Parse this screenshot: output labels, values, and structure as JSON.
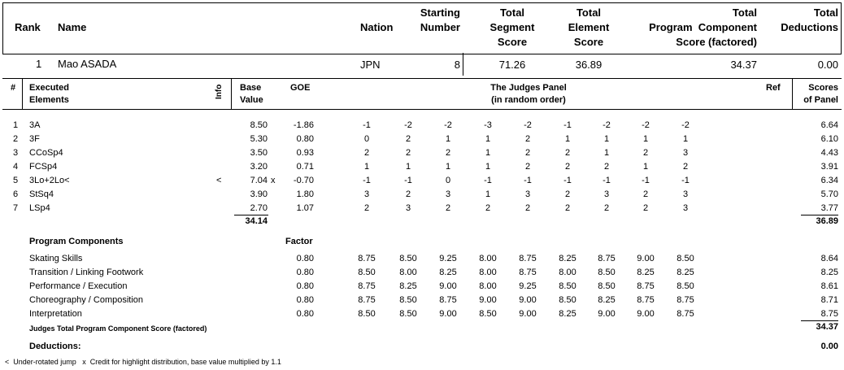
{
  "header": {
    "columns": {
      "rank": "Rank",
      "name": "Name",
      "nation": "Nation",
      "starting_number": [
        "Starting",
        "Number"
      ],
      "total_segment": [
        "Total",
        "Segment",
        "Score"
      ],
      "total_element": [
        "Total",
        "Element",
        "Score"
      ],
      "total_pcs": [
        "Total",
        "Program  Component",
        "Score (factored)"
      ],
      "total_deductions": [
        "Total",
        "Deductions"
      ]
    },
    "skater": {
      "rank": "1",
      "name": "Mao ASADA",
      "nation": "JPN",
      "starting_number": "8",
      "total_segment": "71.26",
      "total_element": "36.89",
      "total_pcs": "34.37",
      "total_deductions": "0.00"
    }
  },
  "elements_header": {
    "num": "#",
    "executed": [
      "Executed",
      "Elements"
    ],
    "info": "Info",
    "base": [
      "Base",
      "Value"
    ],
    "goe": "GOE",
    "panel": [
      "The Judges Panel",
      "(in random order)"
    ],
    "ref": "Ref",
    "scores": [
      "Scores",
      "of Panel"
    ]
  },
  "elements": [
    {
      "num": "1",
      "name": "3A",
      "info": "",
      "base": "8.50",
      "x": "",
      "goe": "-1.86",
      "judges": [
        "-1",
        "-2",
        "-2",
        "-3",
        "-2",
        "-1",
        "-2",
        "-2",
        "-2"
      ],
      "score": "6.64"
    },
    {
      "num": "2",
      "name": "3F",
      "info": "",
      "base": "5.30",
      "x": "",
      "goe": "0.80",
      "judges": [
        "0",
        "2",
        "1",
        "1",
        "2",
        "1",
        "1",
        "1",
        "1"
      ],
      "score": "6.10"
    },
    {
      "num": "3",
      "name": "CCoSp4",
      "info": "",
      "base": "3.50",
      "x": "",
      "goe": "0.93",
      "judges": [
        "2",
        "2",
        "2",
        "1",
        "2",
        "2",
        "1",
        "2",
        "3"
      ],
      "score": "4.43"
    },
    {
      "num": "4",
      "name": "FCSp4",
      "info": "",
      "base": "3.20",
      "x": "",
      "goe": "0.71",
      "judges": [
        "1",
        "1",
        "1",
        "1",
        "2",
        "2",
        "2",
        "1",
        "2"
      ],
      "score": "3.91"
    },
    {
      "num": "5",
      "name": "3Lo+2Lo<",
      "info": "<",
      "base": "7.04",
      "x": "x",
      "goe": "-0.70",
      "judges": [
        "-1",
        "-1",
        "0",
        "-1",
        "-1",
        "-1",
        "-1",
        "-1",
        "-1"
      ],
      "score": "6.34"
    },
    {
      "num": "6",
      "name": "StSq4",
      "info": "",
      "base": "3.90",
      "x": "",
      "goe": "1.80",
      "judges": [
        "3",
        "2",
        "3",
        "1",
        "3",
        "2",
        "3",
        "2",
        "3"
      ],
      "score": "5.70"
    },
    {
      "num": "7",
      "name": "LSp4",
      "info": "",
      "base": "2.70",
      "x": "",
      "goe": "1.07",
      "judges": [
        "2",
        "3",
        "2",
        "2",
        "2",
        "2",
        "2",
        "2",
        "3"
      ],
      "score": "3.77"
    }
  ],
  "elements_total": {
    "base": "34.14",
    "score": "36.89"
  },
  "program_components": {
    "title": "Program Components",
    "factor_label": "Factor",
    "items": [
      {
        "name": "Skating Skills",
        "factor": "0.80",
        "judges": [
          "8.75",
          "8.50",
          "9.25",
          "8.00",
          "8.75",
          "8.25",
          "8.75",
          "9.00",
          "8.50"
        ],
        "score": "8.64"
      },
      {
        "name": "Transition / Linking Footwork",
        "factor": "0.80",
        "judges": [
          "8.50",
          "8.00",
          "8.25",
          "8.00",
          "8.75",
          "8.00",
          "8.50",
          "8.25",
          "8.25"
        ],
        "score": "8.25"
      },
      {
        "name": "Performance / Execution",
        "factor": "0.80",
        "judges": [
          "8.75",
          "8.25",
          "9.00",
          "8.00",
          "9.25",
          "8.50",
          "8.50",
          "8.75",
          "8.50"
        ],
        "score": "8.61"
      },
      {
        "name": "Choreography / Composition",
        "factor": "0.80",
        "judges": [
          "8.75",
          "8.50",
          "8.75",
          "9.00",
          "9.00",
          "8.50",
          "8.25",
          "8.75",
          "8.75"
        ],
        "score": "8.71"
      },
      {
        "name": "Interpretation",
        "factor": "0.80",
        "judges": [
          "8.50",
          "8.50",
          "9.00",
          "8.50",
          "9.00",
          "8.25",
          "9.00",
          "9.00",
          "8.75"
        ],
        "score": "8.75"
      }
    ],
    "total_label": "Judges Total Program Component Score (factored)",
    "total": "34.37"
  },
  "deductions": {
    "label": "Deductions:",
    "value": "0.00"
  },
  "footnote": "<  Under-rotated jump   x  Credit for highlight distribution, base value multiplied by 1.1"
}
